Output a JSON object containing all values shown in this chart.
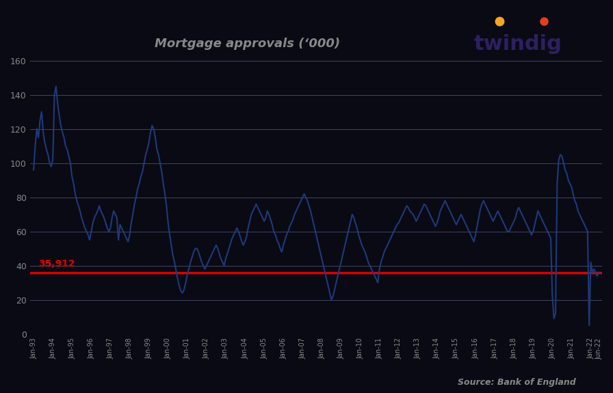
{
  "title": "Mortgage approvals (‘000)",
  "source_text": "Source: Bank of England",
  "reference_line_value": 35.912,
  "reference_label": "35,912",
  "ylim": [
    0,
    160
  ],
  "yticks": [
    0,
    20,
    40,
    60,
    80,
    100,
    120,
    140,
    160
  ],
  "line_color": "#1e3a7a",
  "reference_color": "#dd0000",
  "fig_background": "#0a0a14",
  "plot_background": "#0a0a14",
  "grid_color": "#444466",
  "tick_color": "#888888",
  "title_color": "#888888",
  "source_color": "#888888",
  "twindig_color": "#2d2560",
  "twindig_dot1": "#f5a623",
  "twindig_dot2": "#e05020",
  "values": [
    96,
    110,
    120,
    115,
    125,
    130,
    118,
    112,
    108,
    105,
    100,
    98,
    102,
    140,
    145,
    135,
    128,
    122,
    118,
    115,
    110,
    108,
    104,
    100,
    92,
    88,
    82,
    78,
    75,
    72,
    68,
    65,
    62,
    60,
    58,
    55,
    60,
    65,
    68,
    70,
    72,
    75,
    72,
    70,
    68,
    65,
    62,
    60,
    62,
    68,
    72,
    70,
    68,
    55,
    64,
    62,
    60,
    58,
    56,
    54,
    58,
    65,
    70,
    76,
    80,
    85,
    88,
    92,
    95,
    100,
    105,
    108,
    112,
    118,
    122,
    120,
    115,
    108,
    105,
    100,
    95,
    88,
    82,
    75,
    65,
    58,
    52,
    46,
    42,
    37,
    32,
    28,
    25,
    24,
    26,
    30,
    35,
    38,
    42,
    45,
    48,
    50,
    50,
    48,
    45,
    42,
    40,
    38,
    40,
    42,
    44,
    46,
    48,
    50,
    52,
    50,
    47,
    44,
    42,
    40,
    44,
    47,
    50,
    53,
    56,
    58,
    60,
    62,
    60,
    57,
    54,
    52,
    54,
    57,
    62,
    66,
    70,
    72,
    74,
    76,
    74,
    72,
    70,
    68,
    66,
    68,
    72,
    70,
    67,
    64,
    60,
    58,
    55,
    53,
    50,
    48,
    52,
    55,
    58,
    60,
    63,
    65,
    67,
    70,
    72,
    74,
    76,
    78,
    80,
    82,
    80,
    78,
    75,
    72,
    68,
    64,
    60,
    56,
    52,
    48,
    44,
    40,
    36,
    32,
    28,
    24,
    20,
    22,
    26,
    30,
    34,
    38,
    42,
    46,
    50,
    54,
    58,
    62,
    66,
    70,
    68,
    65,
    62,
    58,
    55,
    52,
    50,
    48,
    45,
    42,
    40,
    38,
    36,
    34,
    32,
    30,
    38,
    42,
    45,
    48,
    50,
    52,
    54,
    56,
    58,
    60,
    62,
    64,
    65,
    67,
    69,
    71,
    73,
    75,
    74,
    72,
    71,
    70,
    68,
    66,
    68,
    70,
    72,
    74,
    76,
    75,
    73,
    71,
    69,
    67,
    65,
    63,
    65,
    68,
    72,
    74,
    76,
    78,
    76,
    74,
    72,
    70,
    68,
    66,
    64,
    66,
    68,
    70,
    68,
    66,
    64,
    62,
    60,
    58,
    56,
    54,
    58,
    63,
    68,
    73,
    76,
    78,
    76,
    74,
    72,
    70,
    68,
    66,
    68,
    70,
    72,
    70,
    68,
    66,
    64,
    62,
    60,
    60,
    62,
    64,
    66,
    68,
    72,
    74,
    72,
    70,
    68,
    66,
    64,
    62,
    60,
    58,
    60,
    64,
    68,
    72,
    70,
    68,
    66,
    64,
    62,
    60,
    58,
    56,
    22,
    9,
    12,
    88,
    102,
    105,
    104,
    100,
    96,
    94,
    90,
    88,
    86,
    82,
    78,
    76,
    72,
    70,
    68,
    66,
    64,
    62,
    60,
    5,
    42,
    36,
    38,
    36,
    34,
    36
  ],
  "xtick_positions": [
    0,
    12,
    24,
    36,
    48,
    60,
    72,
    84,
    96,
    108,
    120,
    132,
    144,
    156,
    168,
    180,
    192,
    204,
    216,
    228,
    240,
    252,
    264,
    276,
    288,
    300,
    312,
    324,
    336,
    348,
    353
  ],
  "xtick_labels": [
    "Jan-93",
    "Jan-94",
    "Jan-95",
    "Jan-96",
    "Jan-97",
    "Jan-98",
    "Jan-99",
    "Jan-00",
    "Jan-01",
    "Jan-02",
    "Jan-03",
    "Jan-04",
    "Jan-05",
    "Jan-06",
    "Jan-07",
    "Jan-08",
    "Jan-09",
    "Jan-10",
    "Jan-11",
    "Jan-12",
    "Jan-13",
    "Jan-14",
    "Jan-15",
    "Jan-16",
    "Jan-17",
    "Jan-18",
    "Jan-19",
    "Jan-20",
    "Jan-21",
    "Jan-22",
    "Jun-22"
  ]
}
